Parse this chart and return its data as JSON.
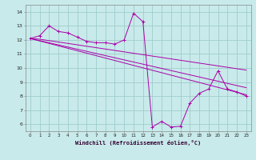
{
  "xlabel": "Windchill (Refroidissement éolien,°C)",
  "bg_color": "#c8eaea",
  "grid_color": "#a0cccc",
  "line_color": "#aa00aa",
  "xlim": [
    -0.5,
    23.5
  ],
  "ylim": [
    5.5,
    14.5
  ],
  "xticks": [
    0,
    1,
    2,
    3,
    4,
    5,
    6,
    7,
    8,
    9,
    10,
    11,
    12,
    13,
    14,
    15,
    16,
    17,
    18,
    19,
    20,
    21,
    22,
    23
  ],
  "yticks": [
    6,
    7,
    8,
    9,
    10,
    11,
    12,
    13,
    14
  ],
  "series1_x": [
    0,
    1,
    2,
    3,
    4,
    5,
    6,
    7,
    8,
    9,
    10,
    11,
    12,
    13,
    14,
    15,
    16,
    17,
    18,
    19,
    20,
    21,
    22,
    23
  ],
  "series1_y": [
    12.1,
    12.3,
    13.0,
    12.6,
    12.5,
    12.2,
    11.9,
    11.8,
    11.8,
    11.7,
    12.0,
    13.9,
    13.3,
    5.8,
    6.2,
    5.8,
    5.85,
    7.5,
    8.2,
    8.5,
    9.8,
    8.5,
    8.3,
    8.0
  ],
  "series2_x": [
    0,
    1,
    2,
    3,
    4,
    5,
    6,
    7,
    8,
    9,
    10,
    11,
    12,
    13,
    14,
    15,
    16,
    17,
    18,
    19,
    20,
    21,
    22,
    23
  ],
  "series2_y": [
    12.1,
    12.05,
    11.95,
    11.85,
    11.75,
    11.65,
    11.55,
    11.45,
    11.35,
    11.25,
    11.15,
    11.05,
    10.95,
    10.85,
    10.75,
    10.65,
    10.55,
    10.45,
    10.35,
    10.25,
    10.15,
    10.05,
    9.95,
    9.85
  ],
  "series3_x": [
    0,
    23
  ],
  "series3_y": [
    12.1,
    8.6
  ],
  "series4_x": [
    0,
    23
  ],
  "series4_y": [
    12.1,
    8.1
  ]
}
